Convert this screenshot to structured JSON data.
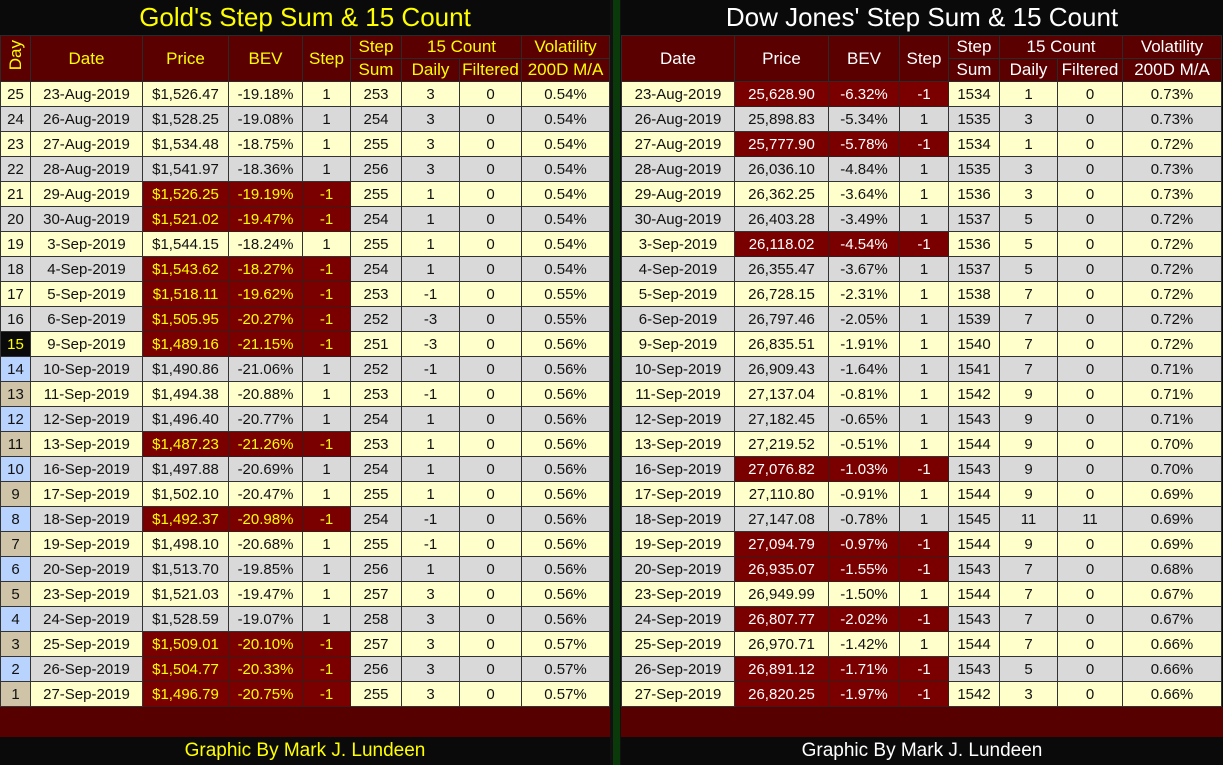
{
  "gold": {
    "title": "Gold's Step Sum & 15 Count",
    "headers": {
      "day": "Day",
      "date": "Date",
      "price": "Price",
      "bev": "BEV",
      "step": "Step",
      "step_sum_1": "Step",
      "step_sum_2": "Sum",
      "count15": "15 Count",
      "daily": "Daily",
      "filtered": "Filtered",
      "vol_1": "Volatility",
      "vol_2": "200D M/A"
    },
    "footer": "Graphic By Mark J. Lundeen",
    "rows": [
      [
        "25",
        "23-Aug-2019",
        "$1,526.47",
        "-19.18%",
        "1",
        "253",
        "3",
        "0",
        "0.54%"
      ],
      [
        "24",
        "26-Aug-2019",
        "$1,528.25",
        "-19.08%",
        "1",
        "254",
        "3",
        "0",
        "0.54%"
      ],
      [
        "23",
        "27-Aug-2019",
        "$1,534.48",
        "-18.75%",
        "1",
        "255",
        "3",
        "0",
        "0.54%"
      ],
      [
        "22",
        "28-Aug-2019",
        "$1,541.97",
        "-18.36%",
        "1",
        "256",
        "3",
        "0",
        "0.54%"
      ],
      [
        "21",
        "29-Aug-2019",
        "$1,526.25",
        "-19.19%",
        "-1",
        "255",
        "1",
        "0",
        "0.54%"
      ],
      [
        "20",
        "30-Aug-2019",
        "$1,521.02",
        "-19.47%",
        "-1",
        "254",
        "1",
        "0",
        "0.54%"
      ],
      [
        "19",
        "3-Sep-2019",
        "$1,544.15",
        "-18.24%",
        "1",
        "255",
        "1",
        "0",
        "0.54%"
      ],
      [
        "18",
        "4-Sep-2019",
        "$1,543.62",
        "-18.27%",
        "-1",
        "254",
        "1",
        "0",
        "0.54%"
      ],
      [
        "17",
        "5-Sep-2019",
        "$1,518.11",
        "-19.62%",
        "-1",
        "253",
        "-1",
        "0",
        "0.55%"
      ],
      [
        "16",
        "6-Sep-2019",
        "$1,505.95",
        "-20.27%",
        "-1",
        "252",
        "-3",
        "0",
        "0.55%"
      ],
      [
        "15",
        "9-Sep-2019",
        "$1,489.16",
        "-21.15%",
        "-1",
        "251",
        "-3",
        "0",
        "0.56%"
      ],
      [
        "14",
        "10-Sep-2019",
        "$1,490.86",
        "-21.06%",
        "1",
        "252",
        "-1",
        "0",
        "0.56%"
      ],
      [
        "13",
        "11-Sep-2019",
        "$1,494.38",
        "-20.88%",
        "1",
        "253",
        "-1",
        "0",
        "0.56%"
      ],
      [
        "12",
        "12-Sep-2019",
        "$1,496.40",
        "-20.77%",
        "1",
        "254",
        "1",
        "0",
        "0.56%"
      ],
      [
        "11",
        "13-Sep-2019",
        "$1,487.23",
        "-21.26%",
        "-1",
        "253",
        "1",
        "0",
        "0.56%"
      ],
      [
        "10",
        "16-Sep-2019",
        "$1,497.88",
        "-20.69%",
        "1",
        "254",
        "1",
        "0",
        "0.56%"
      ],
      [
        "9",
        "17-Sep-2019",
        "$1,502.10",
        "-20.47%",
        "1",
        "255",
        "1",
        "0",
        "0.56%"
      ],
      [
        "8",
        "18-Sep-2019",
        "$1,492.37",
        "-20.98%",
        "-1",
        "254",
        "-1",
        "0",
        "0.56%"
      ],
      [
        "7",
        "19-Sep-2019",
        "$1,498.10",
        "-20.68%",
        "1",
        "255",
        "-1",
        "0",
        "0.56%"
      ],
      [
        "6",
        "20-Sep-2019",
        "$1,513.70",
        "-19.85%",
        "1",
        "256",
        "1",
        "0",
        "0.56%"
      ],
      [
        "5",
        "23-Sep-2019",
        "$1,521.03",
        "-19.47%",
        "1",
        "257",
        "3",
        "0",
        "0.56%"
      ],
      [
        "4",
        "24-Sep-2019",
        "$1,528.59",
        "-19.07%",
        "1",
        "258",
        "3",
        "0",
        "0.56%"
      ],
      [
        "3",
        "25-Sep-2019",
        "$1,509.01",
        "-20.10%",
        "-1",
        "257",
        "3",
        "0",
        "0.57%"
      ],
      [
        "2",
        "26-Sep-2019",
        "$1,504.77",
        "-20.33%",
        "-1",
        "256",
        "3",
        "0",
        "0.57%"
      ],
      [
        "1",
        "27-Sep-2019",
        "$1,496.79",
        "-20.75%",
        "-1",
        "255",
        "3",
        "0",
        "0.57%"
      ]
    ]
  },
  "dow": {
    "title": "Dow Jones' Step Sum & 15 Count",
    "headers": {
      "date": "Date",
      "price": "Price",
      "bev": "BEV",
      "step": "Step",
      "step_sum_1": "Step",
      "step_sum_2": "Sum",
      "count15": "15 Count",
      "daily": "Daily",
      "filtered": "Filtered",
      "vol_1": "Volatility",
      "vol_2": "200D M/A"
    },
    "footer": "Graphic By Mark J. Lundeen",
    "rows": [
      [
        "23-Aug-2019",
        "25,628.90",
        "-6.32%",
        "-1",
        "1534",
        "1",
        "0",
        "0.73%"
      ],
      [
        "26-Aug-2019",
        "25,898.83",
        "-5.34%",
        "1",
        "1535",
        "3",
        "0",
        "0.73%"
      ],
      [
        "27-Aug-2019",
        "25,777.90",
        "-5.78%",
        "-1",
        "1534",
        "1",
        "0",
        "0.72%"
      ],
      [
        "28-Aug-2019",
        "26,036.10",
        "-4.84%",
        "1",
        "1535",
        "3",
        "0",
        "0.73%"
      ],
      [
        "29-Aug-2019",
        "26,362.25",
        "-3.64%",
        "1",
        "1536",
        "3",
        "0",
        "0.73%"
      ],
      [
        "30-Aug-2019",
        "26,403.28",
        "-3.49%",
        "1",
        "1537",
        "5",
        "0",
        "0.72%"
      ],
      [
        "3-Sep-2019",
        "26,118.02",
        "-4.54%",
        "-1",
        "1536",
        "5",
        "0",
        "0.72%"
      ],
      [
        "4-Sep-2019",
        "26,355.47",
        "-3.67%",
        "1",
        "1537",
        "5",
        "0",
        "0.72%"
      ],
      [
        "5-Sep-2019",
        "26,728.15",
        "-2.31%",
        "1",
        "1538",
        "7",
        "0",
        "0.72%"
      ],
      [
        "6-Sep-2019",
        "26,797.46",
        "-2.05%",
        "1",
        "1539",
        "7",
        "0",
        "0.72%"
      ],
      [
        "9-Sep-2019",
        "26,835.51",
        "-1.91%",
        "1",
        "1540",
        "7",
        "0",
        "0.72%"
      ],
      [
        "10-Sep-2019",
        "26,909.43",
        "-1.64%",
        "1",
        "1541",
        "7",
        "0",
        "0.71%"
      ],
      [
        "11-Sep-2019",
        "27,137.04",
        "-0.81%",
        "1",
        "1542",
        "9",
        "0",
        "0.71%"
      ],
      [
        "12-Sep-2019",
        "27,182.45",
        "-0.65%",
        "1",
        "1543",
        "9",
        "0",
        "0.71%"
      ],
      [
        "13-Sep-2019",
        "27,219.52",
        "-0.51%",
        "1",
        "1544",
        "9",
        "0",
        "0.70%"
      ],
      [
        "16-Sep-2019",
        "27,076.82",
        "-1.03%",
        "-1",
        "1543",
        "9",
        "0",
        "0.70%"
      ],
      [
        "17-Sep-2019",
        "27,110.80",
        "-0.91%",
        "1",
        "1544",
        "9",
        "0",
        "0.69%"
      ],
      [
        "18-Sep-2019",
        "27,147.08",
        "-0.78%",
        "1",
        "1545",
        "11",
        "11",
        "0.69%"
      ],
      [
        "19-Sep-2019",
        "27,094.79",
        "-0.97%",
        "-1",
        "1544",
        "9",
        "0",
        "0.69%"
      ],
      [
        "20-Sep-2019",
        "26,935.07",
        "-1.55%",
        "-1",
        "1543",
        "7",
        "0",
        "0.68%"
      ],
      [
        "23-Sep-2019",
        "26,949.99",
        "-1.50%",
        "1",
        "1544",
        "7",
        "0",
        "0.67%"
      ],
      [
        "24-Sep-2019",
        "26,807.77",
        "-2.02%",
        "-1",
        "1543",
        "7",
        "0",
        "0.67%"
      ],
      [
        "25-Sep-2019",
        "26,970.71",
        "-1.42%",
        "1",
        "1544",
        "7",
        "0",
        "0.66%"
      ],
      [
        "26-Sep-2019",
        "26,891.12",
        "-1.71%",
        "-1",
        "1543",
        "5",
        "0",
        "0.66%"
      ],
      [
        "27-Sep-2019",
        "26,820.25",
        "-1.97%",
        "-1",
        "1542",
        "3",
        "0",
        "0.66%"
      ]
    ]
  },
  "colors": {
    "header_bg": "#5a0000",
    "down_cell": "#7a0000",
    "row_a": "#ffffcc",
    "row_b": "#d9d9d9",
    "day_blue": "#b9d3ff",
    "day_tan": "#cfc4a8",
    "gold_text": "#ffff00",
    "divider": "#0a3a0a"
  }
}
